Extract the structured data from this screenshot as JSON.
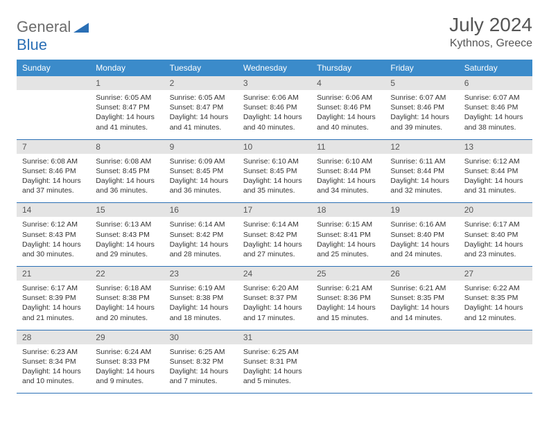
{
  "logo": {
    "text1": "General",
    "text2": "Blue"
  },
  "title": "July 2024",
  "location": "Kythnos, Greece",
  "colors": {
    "header_bg": "#3b8bca",
    "header_text": "#ffffff",
    "rule": "#2a6fb5",
    "daynum_bg": "#e4e4e4",
    "body_text": "#333333",
    "title_text": "#555555"
  },
  "weekdays": [
    "Sunday",
    "Monday",
    "Tuesday",
    "Wednesday",
    "Thursday",
    "Friday",
    "Saturday"
  ],
  "month": {
    "year": 2024,
    "month": 7,
    "first_weekday_index": 1,
    "num_days": 31
  },
  "days": {
    "1": {
      "sunrise": "6:05 AM",
      "sunset": "8:47 PM",
      "daylight": "14 hours and 41 minutes."
    },
    "2": {
      "sunrise": "6:05 AM",
      "sunset": "8:47 PM",
      "daylight": "14 hours and 41 minutes."
    },
    "3": {
      "sunrise": "6:06 AM",
      "sunset": "8:46 PM",
      "daylight": "14 hours and 40 minutes."
    },
    "4": {
      "sunrise": "6:06 AM",
      "sunset": "8:46 PM",
      "daylight": "14 hours and 40 minutes."
    },
    "5": {
      "sunrise": "6:07 AM",
      "sunset": "8:46 PM",
      "daylight": "14 hours and 39 minutes."
    },
    "6": {
      "sunrise": "6:07 AM",
      "sunset": "8:46 PM",
      "daylight": "14 hours and 38 minutes."
    },
    "7": {
      "sunrise": "6:08 AM",
      "sunset": "8:46 PM",
      "daylight": "14 hours and 37 minutes."
    },
    "8": {
      "sunrise": "6:08 AM",
      "sunset": "8:45 PM",
      "daylight": "14 hours and 36 minutes."
    },
    "9": {
      "sunrise": "6:09 AM",
      "sunset": "8:45 PM",
      "daylight": "14 hours and 36 minutes."
    },
    "10": {
      "sunrise": "6:10 AM",
      "sunset": "8:45 PM",
      "daylight": "14 hours and 35 minutes."
    },
    "11": {
      "sunrise": "6:10 AM",
      "sunset": "8:44 PM",
      "daylight": "14 hours and 34 minutes."
    },
    "12": {
      "sunrise": "6:11 AM",
      "sunset": "8:44 PM",
      "daylight": "14 hours and 32 minutes."
    },
    "13": {
      "sunrise": "6:12 AM",
      "sunset": "8:44 PM",
      "daylight": "14 hours and 31 minutes."
    },
    "14": {
      "sunrise": "6:12 AM",
      "sunset": "8:43 PM",
      "daylight": "14 hours and 30 minutes."
    },
    "15": {
      "sunrise": "6:13 AM",
      "sunset": "8:43 PM",
      "daylight": "14 hours and 29 minutes."
    },
    "16": {
      "sunrise": "6:14 AM",
      "sunset": "8:42 PM",
      "daylight": "14 hours and 28 minutes."
    },
    "17": {
      "sunrise": "6:14 AM",
      "sunset": "8:42 PM",
      "daylight": "14 hours and 27 minutes."
    },
    "18": {
      "sunrise": "6:15 AM",
      "sunset": "8:41 PM",
      "daylight": "14 hours and 25 minutes."
    },
    "19": {
      "sunrise": "6:16 AM",
      "sunset": "8:40 PM",
      "daylight": "14 hours and 24 minutes."
    },
    "20": {
      "sunrise": "6:17 AM",
      "sunset": "8:40 PM",
      "daylight": "14 hours and 23 minutes."
    },
    "21": {
      "sunrise": "6:17 AM",
      "sunset": "8:39 PM",
      "daylight": "14 hours and 21 minutes."
    },
    "22": {
      "sunrise": "6:18 AM",
      "sunset": "8:38 PM",
      "daylight": "14 hours and 20 minutes."
    },
    "23": {
      "sunrise": "6:19 AM",
      "sunset": "8:38 PM",
      "daylight": "14 hours and 18 minutes."
    },
    "24": {
      "sunrise": "6:20 AM",
      "sunset": "8:37 PM",
      "daylight": "14 hours and 17 minutes."
    },
    "25": {
      "sunrise": "6:21 AM",
      "sunset": "8:36 PM",
      "daylight": "14 hours and 15 minutes."
    },
    "26": {
      "sunrise": "6:21 AM",
      "sunset": "8:35 PM",
      "daylight": "14 hours and 14 minutes."
    },
    "27": {
      "sunrise": "6:22 AM",
      "sunset": "8:35 PM",
      "daylight": "14 hours and 12 minutes."
    },
    "28": {
      "sunrise": "6:23 AM",
      "sunset": "8:34 PM",
      "daylight": "14 hours and 10 minutes."
    },
    "29": {
      "sunrise": "6:24 AM",
      "sunset": "8:33 PM",
      "daylight": "14 hours and 9 minutes."
    },
    "30": {
      "sunrise": "6:25 AM",
      "sunset": "8:32 PM",
      "daylight": "14 hours and 7 minutes."
    },
    "31": {
      "sunrise": "6:25 AM",
      "sunset": "8:31 PM",
      "daylight": "14 hours and 5 minutes."
    }
  },
  "labels": {
    "sunrise": "Sunrise: ",
    "sunset": "Sunset: ",
    "daylight": "Daylight: "
  }
}
